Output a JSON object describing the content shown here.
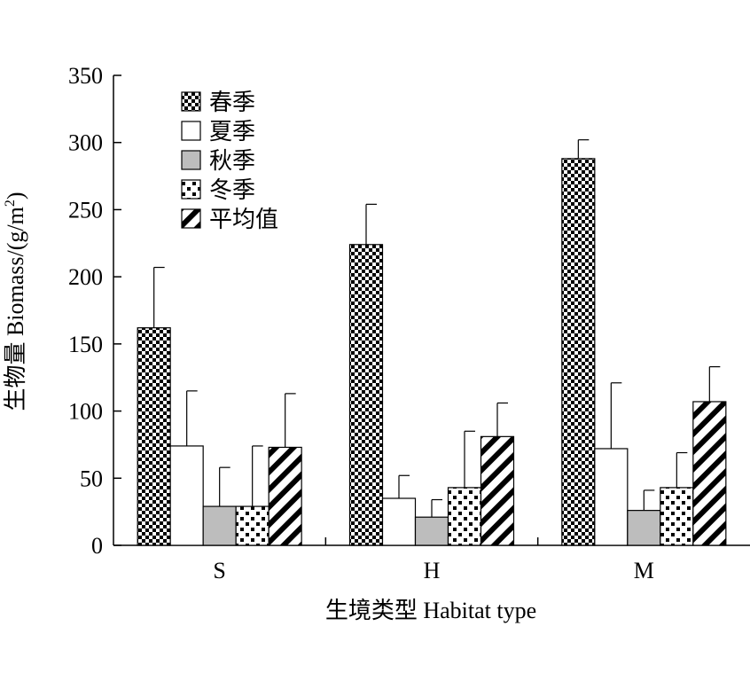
{
  "chart_data": {
    "type": "bar",
    "title": "",
    "xlabel": "生境类型 Habitat type",
    "ylabel_main": "生物量 Biomass/(g/m",
    "ylabel_sup": "2",
    "ylabel_close": ")",
    "ylim": [
      0,
      350
    ],
    "yticks": [
      "0",
      "50",
      "100",
      "150",
      "200",
      "250",
      "300",
      "350"
    ],
    "categories": [
      "S",
      "H",
      "M"
    ],
    "legend_position": "top-left",
    "error_bars": true,
    "series": [
      {
        "name": "春季",
        "pattern": "checker",
        "values": [
          162,
          224,
          288
        ],
        "errors": [
          45,
          30,
          14
        ]
      },
      {
        "name": "夏季",
        "pattern": "white",
        "values": [
          74,
          35,
          72
        ],
        "errors": [
          41,
          17,
          49
        ]
      },
      {
        "name": "秋季",
        "pattern": "gray",
        "values": [
          29,
          21,
          26
        ],
        "errors": [
          29,
          13,
          15
        ]
      },
      {
        "name": "冬季",
        "pattern": "dots",
        "values": [
          29,
          43,
          43
        ],
        "errors": [
          45,
          42,
          26
        ]
      },
      {
        "name": "平均值",
        "pattern": "diagonal",
        "values": [
          73,
          81,
          107
        ],
        "errors": [
          40,
          25,
          26
        ]
      }
    ]
  }
}
